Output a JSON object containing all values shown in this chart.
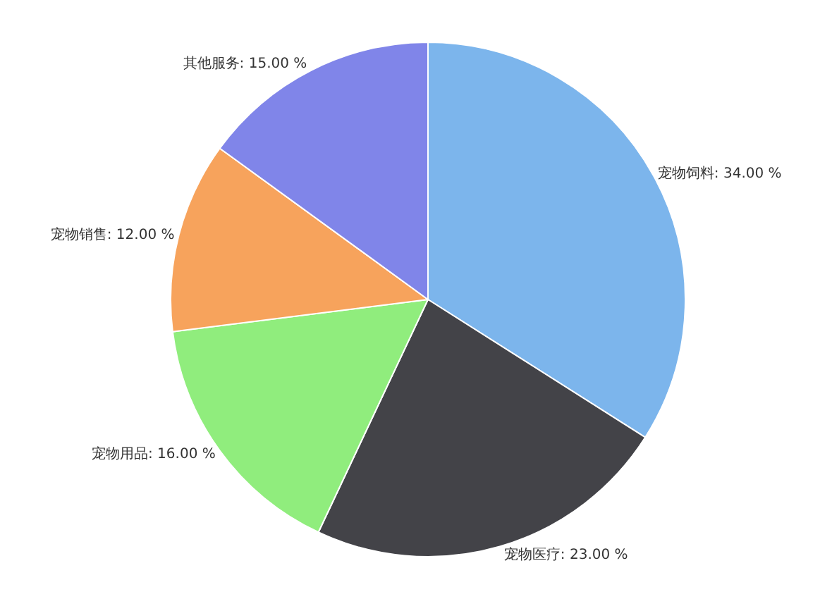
{
  "chart_data": {
    "type": "pie",
    "categories": [
      "宠物饲料",
      "宠物医疗",
      "宠物用品",
      "宠物销售",
      "其他服务"
    ],
    "values": [
      34,
      23,
      16,
      12,
      15
    ],
    "value_labels": [
      "34.00 %",
      "23.00 %",
      "16.00 %",
      "12.00 %",
      "15.00 %"
    ],
    "colors": [
      "#7cb5ec",
      "#434348",
      "#90ed7d",
      "#f7a35c",
      "#8085e9"
    ],
    "legend": false
  }
}
